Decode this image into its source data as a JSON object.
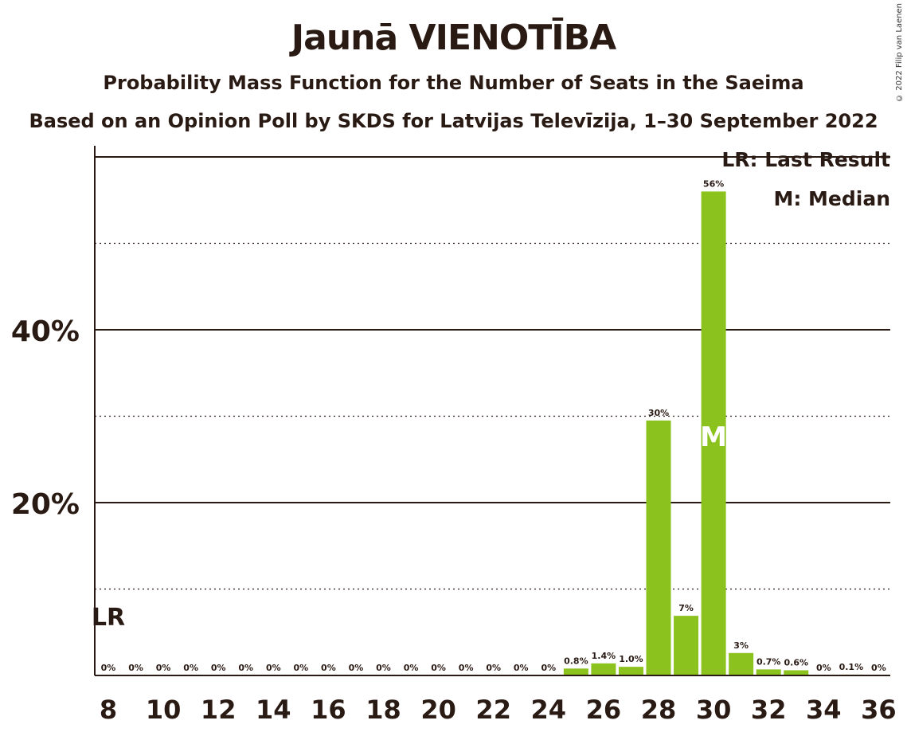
{
  "header": {
    "title": "Jaunā VIENOTĪBA",
    "subtitle": "Probability Mass Function for the Number of Seats in the Saeima",
    "source": "Based on an Opinion Poll by SKDS for Latvijas Televīzija, 1–30 September 2022",
    "copyright": "© 2022 Filip van Laenen"
  },
  "legend": {
    "last_result": "LR: Last Result",
    "median": "M: Median"
  },
  "colors": {
    "bar": "#8bc21d",
    "text": "#2a1a14"
  },
  "chart_data": {
    "type": "bar",
    "title": "Jaunā VIENOTĪBA",
    "x": [
      8,
      9,
      10,
      11,
      12,
      13,
      14,
      15,
      16,
      17,
      18,
      19,
      20,
      21,
      22,
      23,
      24,
      25,
      26,
      27,
      28,
      29,
      30,
      31,
      32,
      33,
      34,
      35,
      36
    ],
    "values": [
      0,
      0,
      0,
      0,
      0,
      0,
      0,
      0,
      0,
      0,
      0,
      0,
      0,
      0,
      0,
      0,
      0,
      0.8,
      1.4,
      1.0,
      29.5,
      6.9,
      56.0,
      2.6,
      0.7,
      0.6,
      0,
      0.1,
      0
    ],
    "data_labels": [
      "0%",
      "0%",
      "0%",
      "0%",
      "0%",
      "0%",
      "0%",
      "0%",
      "0%",
      "0%",
      "0%",
      "0%",
      "0%",
      "0%",
      "0%",
      "0%",
      "0%",
      "0.8%",
      "1.4%",
      "1.0%",
      "30%",
      "7%",
      "56%",
      "3%",
      "0.7%",
      "0.6%",
      "0%",
      "0.1%",
      "0%"
    ],
    "x_ticks": [
      "8",
      "10",
      "12",
      "14",
      "16",
      "18",
      "20",
      "22",
      "24",
      "26",
      "28",
      "30",
      "32",
      "34",
      "36"
    ],
    "y_ticks": [
      "20%",
      "40%"
    ],
    "y_tick_values": [
      20,
      40
    ],
    "ylim": [
      0,
      61.3
    ],
    "last_result_seat": 8,
    "last_result_label": "LR",
    "median_seat": 30,
    "median_label": "M",
    "legend_position": "top-right",
    "grid": "dotted every 10%, solid every 20%"
  }
}
